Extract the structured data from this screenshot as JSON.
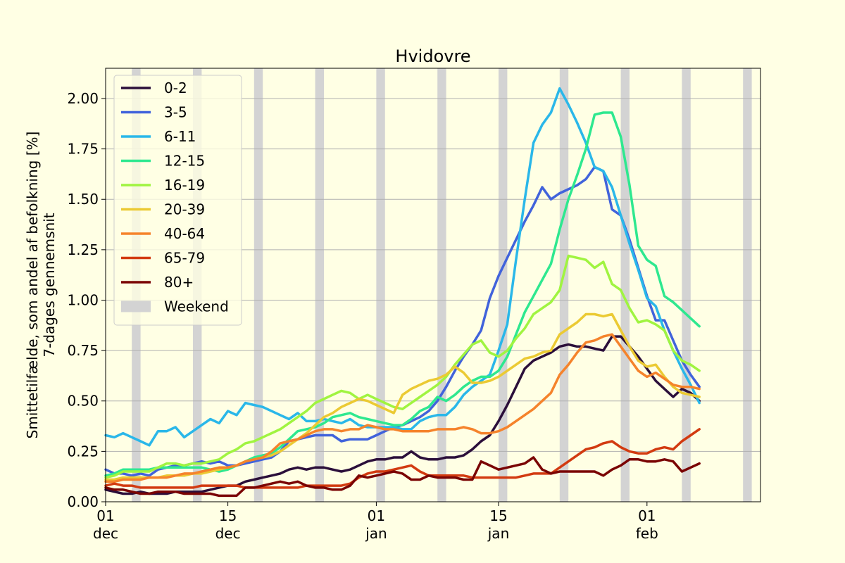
{
  "chart_data": {
    "type": "line",
    "title": "Hvidovre",
    "ylabel_line1": "Smittetilfælde, som andel af befolkning [%]",
    "ylabel_line2": "7-dages gennemsnit",
    "x_start": "2021-12-01",
    "xlim": [
      "2021-12-01",
      "2022-02-14"
    ],
    "ylim": [
      0,
      2.15
    ],
    "y_ticks": [
      0,
      0.25,
      0.5,
      0.75,
      1.0,
      1.25,
      1.5,
      1.75,
      2.0
    ],
    "y_tick_labels": [
      "0.00",
      "0.25",
      "0.50",
      "0.75",
      "1.00",
      "1.25",
      "1.50",
      "1.75",
      "2.00"
    ],
    "x_ticks": [
      {
        "date": "2021-12-01",
        "day": "01",
        "month": "dec"
      },
      {
        "date": "2021-12-15",
        "day": "15",
        "month": "dec"
      },
      {
        "date": "2022-01-01",
        "day": "01",
        "month": "jan"
      },
      {
        "date": "2022-01-15",
        "day": "15",
        "month": "jan"
      },
      {
        "date": "2022-02-01",
        "day": "01",
        "month": "feb"
      }
    ],
    "grid": "horizontal",
    "legend_position": "top-left",
    "weekend_label": "Weekend",
    "weekend_color": "#D3D3D3",
    "weekends": [
      [
        "2021-12-04",
        "2021-12-05"
      ],
      [
        "2021-12-11",
        "2021-12-12"
      ],
      [
        "2021-12-18",
        "2021-12-19"
      ],
      [
        "2021-12-25",
        "2021-12-26"
      ],
      [
        "2022-01-01",
        "2022-01-02"
      ],
      [
        "2022-01-08",
        "2022-01-09"
      ],
      [
        "2022-01-15",
        "2022-01-16"
      ],
      [
        "2022-01-22",
        "2022-01-23"
      ],
      [
        "2022-01-29",
        "2022-01-30"
      ],
      [
        "2022-02-05",
        "2022-02-06"
      ],
      [
        "2022-02-12",
        "2022-02-13"
      ]
    ],
    "x": [
      "2021-12-01",
      "2021-12-02",
      "2021-12-03",
      "2021-12-04",
      "2021-12-05",
      "2021-12-06",
      "2021-12-07",
      "2021-12-08",
      "2021-12-09",
      "2021-12-10",
      "2021-12-11",
      "2021-12-12",
      "2021-12-13",
      "2021-12-14",
      "2021-12-15",
      "2021-12-16",
      "2021-12-17",
      "2021-12-18",
      "2021-12-19",
      "2021-12-20",
      "2021-12-21",
      "2021-12-22",
      "2021-12-23",
      "2021-12-24",
      "2021-12-25",
      "2021-12-26",
      "2021-12-27",
      "2021-12-28",
      "2021-12-29",
      "2021-12-30",
      "2021-12-31",
      "2022-01-01",
      "2022-01-02",
      "2022-01-03",
      "2022-01-04",
      "2022-01-05",
      "2022-01-06",
      "2022-01-07",
      "2022-01-08",
      "2022-01-09",
      "2022-01-10",
      "2022-01-11",
      "2022-01-12",
      "2022-01-13",
      "2022-01-14",
      "2022-01-15",
      "2022-01-16",
      "2022-01-17",
      "2022-01-18",
      "2022-01-19",
      "2022-01-20",
      "2022-01-21",
      "2022-01-22",
      "2022-01-23",
      "2022-01-24",
      "2022-01-25",
      "2022-01-26",
      "2022-01-27",
      "2022-01-28",
      "2022-01-29",
      "2022-01-30",
      "2022-01-31",
      "2022-02-01",
      "2022-02-02",
      "2022-02-03",
      "2022-02-04",
      "2022-02-05",
      "2022-02-06",
      "2022-02-07"
    ],
    "series": [
      {
        "name": "0-2",
        "color": "#2B0F3A",
        "values": [
          0.06,
          0.05,
          0.04,
          0.04,
          0.05,
          0.04,
          0.04,
          0.04,
          0.05,
          0.05,
          0.05,
          0.05,
          0.06,
          0.07,
          0.08,
          0.08,
          0.1,
          0.11,
          0.12,
          0.13,
          0.14,
          0.16,
          0.17,
          0.16,
          0.17,
          0.17,
          0.16,
          0.15,
          0.16,
          0.18,
          0.2,
          0.21,
          0.21,
          0.22,
          0.22,
          0.25,
          0.22,
          0.21,
          0.21,
          0.22,
          0.22,
          0.23,
          0.26,
          0.3,
          0.33,
          0.4,
          0.48,
          0.57,
          0.66,
          0.7,
          0.72,
          0.74,
          0.77,
          0.78,
          0.77,
          0.77,
          0.76,
          0.75,
          0.82,
          0.82,
          0.77,
          0.72,
          0.66,
          0.6,
          0.56,
          0.52,
          0.56,
          0.54,
          0.5
        ]
      },
      {
        "name": "3-5",
        "color": "#4163DB",
        "values": [
          0.16,
          0.14,
          0.14,
          0.13,
          0.14,
          0.13,
          0.16,
          0.17,
          0.18,
          0.18,
          0.19,
          0.2,
          0.19,
          0.2,
          0.18,
          0.18,
          0.19,
          0.2,
          0.21,
          0.22,
          0.25,
          0.3,
          0.31,
          0.32,
          0.33,
          0.33,
          0.33,
          0.3,
          0.31,
          0.31,
          0.31,
          0.33,
          0.35,
          0.37,
          0.38,
          0.4,
          0.42,
          0.45,
          0.5,
          0.57,
          0.65,
          0.72,
          0.78,
          0.85,
          1.01,
          1.12,
          1.21,
          1.3,
          1.39,
          1.47,
          1.56,
          1.5,
          1.53,
          1.55,
          1.57,
          1.6,
          1.66,
          1.64,
          1.45,
          1.42,
          1.3,
          1.16,
          1.02,
          0.9,
          0.9,
          0.8,
          0.7,
          0.63,
          0.57
        ]
      },
      {
        "name": "6-11",
        "color": "#2AB7E9",
        "values": [
          0.33,
          0.32,
          0.34,
          0.32,
          0.3,
          0.28,
          0.35,
          0.35,
          0.37,
          0.32,
          0.35,
          0.38,
          0.41,
          0.39,
          0.45,
          0.43,
          0.49,
          0.48,
          0.47,
          0.45,
          0.43,
          0.41,
          0.44,
          0.4,
          0.4,
          0.41,
          0.4,
          0.39,
          0.41,
          0.38,
          0.37,
          0.37,
          0.37,
          0.37,
          0.36,
          0.36,
          0.4,
          0.42,
          0.43,
          0.43,
          0.47,
          0.53,
          0.57,
          0.6,
          0.63,
          0.75,
          0.88,
          1.2,
          1.5,
          1.78,
          1.87,
          1.93,
          2.05,
          1.97,
          1.88,
          1.78,
          1.66,
          1.64,
          1.56,
          1.42,
          1.28,
          1.15,
          1.01,
          0.97,
          0.85,
          0.75,
          0.66,
          0.58,
          0.49
        ]
      },
      {
        "name": "12-15",
        "color": "#2EE88F",
        "values": [
          0.13,
          0.14,
          0.16,
          0.16,
          0.16,
          0.16,
          0.17,
          0.17,
          0.17,
          0.17,
          0.17,
          0.17,
          0.16,
          0.15,
          0.16,
          0.18,
          0.2,
          0.22,
          0.23,
          0.24,
          0.27,
          0.31,
          0.35,
          0.36,
          0.37,
          0.39,
          0.42,
          0.43,
          0.44,
          0.42,
          0.41,
          0.4,
          0.39,
          0.38,
          0.38,
          0.41,
          0.45,
          0.47,
          0.52,
          0.5,
          0.53,
          0.57,
          0.6,
          0.62,
          0.62,
          0.65,
          0.72,
          0.83,
          0.94,
          1.02,
          1.1,
          1.18,
          1.35,
          1.5,
          1.62,
          1.75,
          1.92,
          1.93,
          1.93,
          1.81,
          1.57,
          1.27,
          1.2,
          1.17,
          1.02,
          0.99,
          0.95,
          0.91,
          0.87
        ]
      },
      {
        "name": "16-19",
        "color": "#A0F440",
        "values": [
          0.12,
          0.13,
          0.15,
          0.15,
          0.15,
          0.15,
          0.17,
          0.19,
          0.19,
          0.18,
          0.19,
          0.19,
          0.2,
          0.21,
          0.24,
          0.26,
          0.29,
          0.3,
          0.32,
          0.34,
          0.36,
          0.39,
          0.42,
          0.45,
          0.49,
          0.51,
          0.53,
          0.55,
          0.54,
          0.51,
          0.53,
          0.51,
          0.49,
          0.47,
          0.46,
          0.49,
          0.52,
          0.55,
          0.58,
          0.62,
          0.68,
          0.73,
          0.78,
          0.8,
          0.74,
          0.72,
          0.75,
          0.81,
          0.86,
          0.93,
          0.96,
          0.99,
          1.05,
          1.22,
          1.21,
          1.2,
          1.16,
          1.19,
          1.08,
          1.05,
          0.96,
          0.89,
          0.9,
          0.88,
          0.85,
          0.75,
          0.7,
          0.68,
          0.65
        ]
      },
      {
        "name": "20-39",
        "color": "#EBCA33",
        "values": [
          0.11,
          0.11,
          0.12,
          0.12,
          0.12,
          0.12,
          0.12,
          0.13,
          0.13,
          0.13,
          0.14,
          0.14,
          0.15,
          0.16,
          0.17,
          0.18,
          0.2,
          0.21,
          0.22,
          0.23,
          0.25,
          0.28,
          0.31,
          0.34,
          0.38,
          0.42,
          0.44,
          0.47,
          0.49,
          0.51,
          0.5,
          0.48,
          0.46,
          0.44,
          0.53,
          0.56,
          0.58,
          0.6,
          0.61,
          0.63,
          0.67,
          0.64,
          0.59,
          0.59,
          0.6,
          0.62,
          0.65,
          0.68,
          0.71,
          0.72,
          0.74,
          0.75,
          0.83,
          0.86,
          0.89,
          0.93,
          0.93,
          0.92,
          0.93,
          0.85,
          0.77,
          0.7,
          0.67,
          0.68,
          0.62,
          0.57,
          0.54,
          0.53,
          0.52
        ]
      },
      {
        "name": "40-64",
        "color": "#F5832B",
        "values": [
          0.1,
          0.1,
          0.11,
          0.11,
          0.11,
          0.12,
          0.12,
          0.12,
          0.13,
          0.14,
          0.14,
          0.15,
          0.16,
          0.17,
          0.17,
          0.18,
          0.2,
          0.21,
          0.22,
          0.25,
          0.29,
          0.3,
          0.31,
          0.33,
          0.35,
          0.36,
          0.36,
          0.35,
          0.36,
          0.36,
          0.38,
          0.37,
          0.36,
          0.36,
          0.35,
          0.35,
          0.35,
          0.35,
          0.36,
          0.36,
          0.36,
          0.37,
          0.36,
          0.34,
          0.34,
          0.35,
          0.37,
          0.4,
          0.43,
          0.46,
          0.5,
          0.54,
          0.63,
          0.68,
          0.74,
          0.79,
          0.8,
          0.82,
          0.83,
          0.77,
          0.71,
          0.65,
          0.62,
          0.64,
          0.61,
          0.58,
          0.57,
          0.57,
          0.56
        ]
      },
      {
        "name": "65-79",
        "color": "#D23A10",
        "values": [
          0.08,
          0.09,
          0.08,
          0.08,
          0.07,
          0.07,
          0.07,
          0.07,
          0.07,
          0.07,
          0.07,
          0.08,
          0.08,
          0.08,
          0.08,
          0.08,
          0.07,
          0.07,
          0.07,
          0.07,
          0.07,
          0.07,
          0.07,
          0.08,
          0.08,
          0.08,
          0.08,
          0.08,
          0.09,
          0.12,
          0.14,
          0.15,
          0.15,
          0.16,
          0.17,
          0.18,
          0.15,
          0.13,
          0.13,
          0.13,
          0.13,
          0.13,
          0.12,
          0.12,
          0.12,
          0.12,
          0.12,
          0.12,
          0.13,
          0.14,
          0.14,
          0.14,
          0.17,
          0.2,
          0.23,
          0.26,
          0.27,
          0.29,
          0.3,
          0.27,
          0.25,
          0.24,
          0.24,
          0.26,
          0.27,
          0.26,
          0.3,
          0.33,
          0.36
        ]
      },
      {
        "name": "80+",
        "color": "#7A0403",
        "values": [
          0.07,
          0.06,
          0.06,
          0.05,
          0.04,
          0.04,
          0.05,
          0.05,
          0.05,
          0.04,
          0.04,
          0.04,
          0.04,
          0.03,
          0.03,
          0.03,
          0.07,
          0.07,
          0.08,
          0.09,
          0.1,
          0.09,
          0.1,
          0.08,
          0.07,
          0.07,
          0.06,
          0.06,
          0.08,
          0.13,
          0.12,
          0.13,
          0.14,
          0.15,
          0.14,
          0.11,
          0.11,
          0.13,
          0.12,
          0.12,
          0.12,
          0.11,
          0.11,
          0.2,
          0.18,
          0.16,
          0.17,
          0.18,
          0.19,
          0.22,
          0.16,
          0.14,
          0.15,
          0.15,
          0.15,
          0.15,
          0.15,
          0.13,
          0.16,
          0.18,
          0.21,
          0.21,
          0.2,
          0.2,
          0.21,
          0.2,
          0.15,
          0.17,
          0.19
        ]
      }
    ]
  }
}
